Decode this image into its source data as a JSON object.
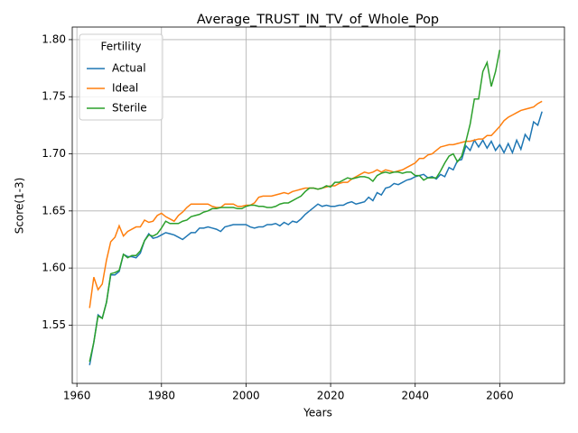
{
  "chart_data": {
    "type": "line",
    "title": "Average_TRUST_IN_TV_of_Whole_Pop",
    "xlabel": "Years",
    "ylabel": "Score(1-3)",
    "legend_title": "Fertility",
    "legend": "upper left",
    "grid": true,
    "xlim": [
      1958.9,
      2075.3
    ],
    "ylim": [
      1.499,
      1.811
    ],
    "xticks": [
      1960,
      1980,
      2000,
      2020,
      2040,
      2060
    ],
    "yticks": [
      1.55,
      {
        "value": 1.6,
        "label": "1.60"
      },
      1.65,
      {
        "value": 1.7,
        "label": "1.70"
      },
      1.75,
      {
        "value": 1.8,
        "label": "1.80"
      }
    ],
    "x": [
      1963,
      1964,
      1965,
      1966,
      1967,
      1968,
      1969,
      1970,
      1971,
      1972,
      1973,
      1974,
      1975,
      1976,
      1977,
      1978,
      1979,
      1980,
      1981,
      1982,
      1983,
      1984,
      1985,
      1986,
      1987,
      1988,
      1989,
      1990,
      1991,
      1992,
      1993,
      1994,
      1995,
      1996,
      1997,
      1998,
      1999,
      2000,
      2001,
      2002,
      2003,
      2004,
      2005,
      2006,
      2007,
      2008,
      2009,
      2010,
      2011,
      2012,
      2013,
      2014,
      2015,
      2016,
      2017,
      2018,
      2019,
      2020,
      2021,
      2022,
      2023,
      2024,
      2025,
      2026,
      2027,
      2028,
      2029,
      2030,
      2031,
      2032,
      2033,
      2034,
      2035,
      2036,
      2037,
      2038,
      2039,
      2040,
      2041,
      2042,
      2043,
      2044,
      2045,
      2046,
      2047,
      2048,
      2049,
      2050,
      2051,
      2052,
      2053,
      2054,
      2055,
      2056,
      2057,
      2058,
      2059,
      2060,
      2061,
      2062,
      2063,
      2064,
      2065,
      2066,
      2067,
      2068,
      2069,
      2070
    ],
    "series": [
      {
        "name": "Actual",
        "color": "#1f77b4",
        "values": [
          1.515,
          1.535,
          1.559,
          1.556,
          1.57,
          1.594,
          1.594,
          1.597,
          1.612,
          1.61,
          1.61,
          1.609,
          1.613,
          1.624,
          1.63,
          1.626,
          1.627,
          1.629,
          1.631,
          1.63,
          1.629,
          1.627,
          1.625,
          1.628,
          1.631,
          1.631,
          1.635,
          1.635,
          1.636,
          1.635,
          1.634,
          1.632,
          1.636,
          1.637,
          1.638,
          1.638,
          1.638,
          1.638,
          1.636,
          1.635,
          1.636,
          1.636,
          1.638,
          1.638,
          1.639,
          1.637,
          1.64,
          1.638,
          1.641,
          1.64,
          1.643,
          1.647,
          1.65,
          1.653,
          1.656,
          1.654,
          1.655,
          1.654,
          1.654,
          1.655,
          1.655,
          1.657,
          1.658,
          1.656,
          1.657,
          1.658,
          1.662,
          1.659,
          1.666,
          1.664,
          1.67,
          1.671,
          1.674,
          1.673,
          1.675,
          1.677,
          1.678,
          1.68,
          1.681,
          1.682,
          1.679,
          1.68,
          1.678,
          1.682,
          1.68,
          1.688,
          1.686,
          1.694,
          1.695,
          1.707,
          1.703,
          1.712,
          1.706,
          1.712,
          1.705,
          1.711,
          1.703,
          1.708,
          1.701,
          1.709,
          1.701,
          1.712,
          1.704,
          1.717,
          1.712,
          1.728,
          1.725,
          1.737
        ]
      },
      {
        "name": "Ideal",
        "color": "#ff7f0e",
        "values": [
          1.565,
          1.592,
          1.581,
          1.586,
          1.607,
          1.623,
          1.627,
          1.637,
          1.628,
          1.632,
          1.634,
          1.636,
          1.636,
          1.642,
          1.64,
          1.641,
          1.646,
          1.648,
          1.645,
          1.643,
          1.641,
          1.646,
          1.649,
          1.653,
          1.656,
          1.656,
          1.656,
          1.656,
          1.656,
          1.654,
          1.653,
          1.653,
          1.656,
          1.656,
          1.656,
          1.654,
          1.654,
          1.655,
          1.655,
          1.657,
          1.662,
          1.663,
          1.663,
          1.663,
          1.664,
          1.665,
          1.666,
          1.665,
          1.667,
          1.668,
          1.669,
          1.67,
          1.67,
          1.67,
          1.669,
          1.67,
          1.671,
          1.672,
          1.672,
          1.674,
          1.675,
          1.675,
          1.678,
          1.68,
          1.682,
          1.684,
          1.683,
          1.684,
          1.686,
          1.684,
          1.686,
          1.685,
          1.684,
          1.685,
          1.686,
          1.688,
          1.69,
          1.692,
          1.696,
          1.696,
          1.699,
          1.7,
          1.703,
          1.706,
          1.707,
          1.708,
          1.708,
          1.709,
          1.71,
          1.711,
          1.711,
          1.712,
          1.713,
          1.713,
          1.716,
          1.716,
          1.72,
          1.724,
          1.729,
          1.732,
          1.734,
          1.736,
          1.738,
          1.739,
          1.74,
          1.741,
          1.744,
          1.746
        ]
      },
      {
        "name": "Sterile",
        "color": "#2ca02c",
        "values": [
          1.518,
          1.535,
          1.558,
          1.556,
          1.57,
          1.595,
          1.596,
          1.598,
          1.612,
          1.609,
          1.611,
          1.611,
          1.615,
          1.624,
          1.629,
          1.628,
          1.63,
          1.635,
          1.641,
          1.639,
          1.639,
          1.639,
          1.641,
          1.642,
          1.645,
          1.646,
          1.647,
          1.649,
          1.65,
          1.652,
          1.652,
          1.653,
          1.653,
          1.653,
          1.653,
          1.652,
          1.652,
          1.654,
          1.655,
          1.655,
          1.654,
          1.654,
          1.653,
          1.653,
          1.654,
          1.656,
          1.657,
          1.657,
          1.659,
          1.661,
          1.663,
          1.667,
          1.67,
          1.67,
          1.669,
          1.67,
          1.672,
          1.671,
          1.675,
          1.675,
          1.677,
          1.679,
          1.678,
          1.679,
          1.68,
          1.68,
          1.679,
          1.676,
          1.681,
          1.683,
          1.684,
          1.683,
          1.684,
          1.684,
          1.683,
          1.684,
          1.684,
          1.681,
          1.681,
          1.677,
          1.679,
          1.679,
          1.679,
          1.685,
          1.692,
          1.698,
          1.7,
          1.693,
          1.698,
          1.711,
          1.726,
          1.748,
          1.748,
          1.772,
          1.78,
          1.759,
          1.772,
          1.791,
          null,
          null,
          null,
          null,
          null,
          null,
          null,
          null,
          null,
          null
        ]
      }
    ]
  }
}
